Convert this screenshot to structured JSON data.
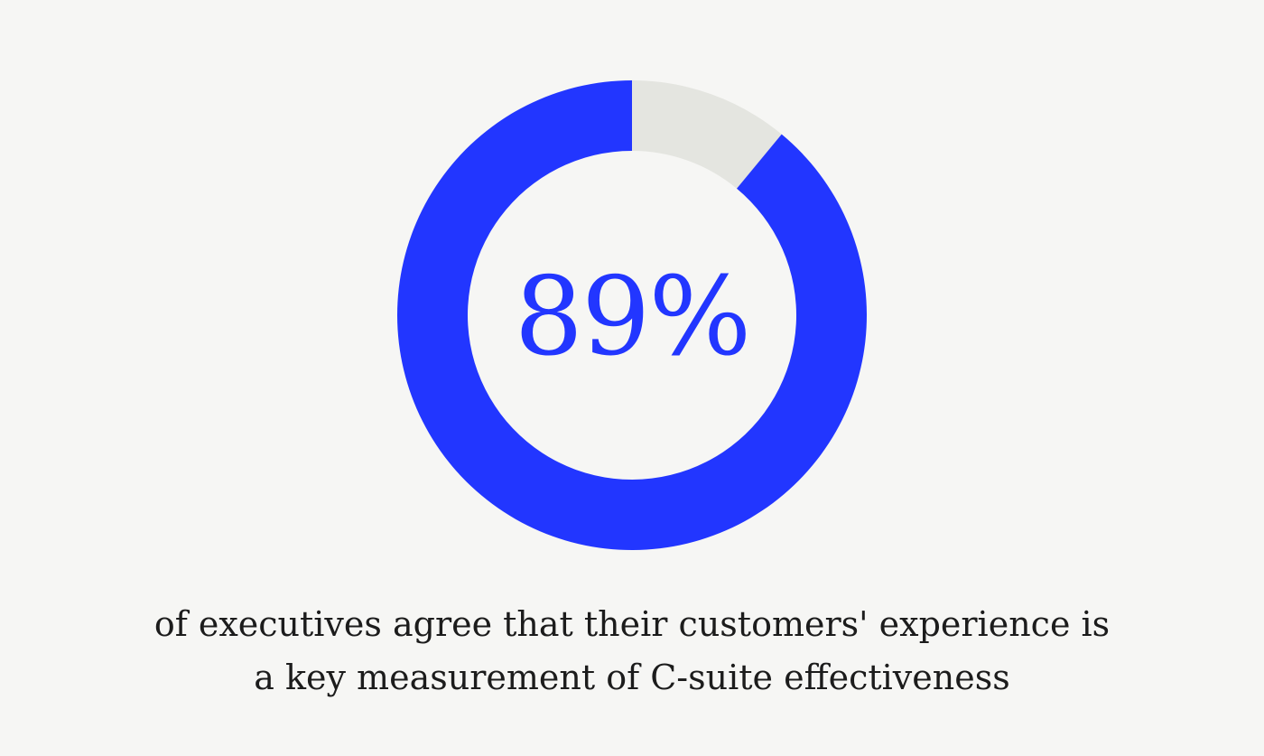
{
  "chart_data": {
    "type": "pie",
    "value": 89,
    "remainder": 11,
    "center_label": "89%",
    "colors": {
      "value": "#2236ff",
      "remainder": "#e4e5e0",
      "center_label": "#2236ff"
    }
  },
  "caption": {
    "line1": "of executives agree that their customers' experience is",
    "line2": "a key measurement of C-suite effectiveness"
  }
}
